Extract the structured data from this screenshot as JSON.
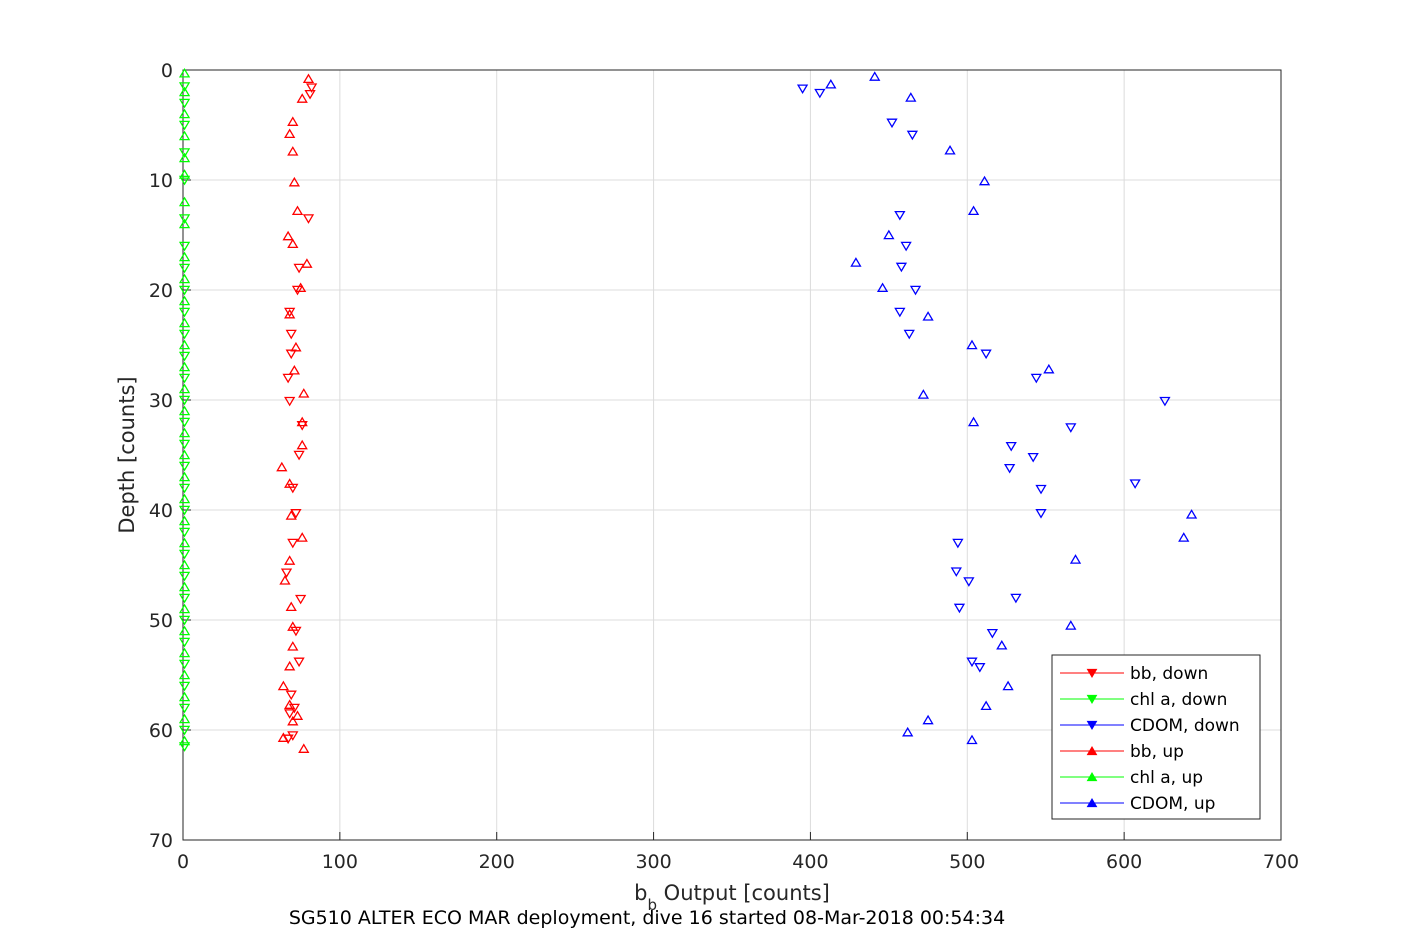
{
  "chart_data": {
    "type": "scatter",
    "title": "",
    "caption": "SG510 ALTER ECO MAR deployment, dive 16 started 08-Mar-2018 00:54:34",
    "xlabel": {
      "main": "b",
      "sub": "b",
      "rest": " Output [counts]"
    },
    "ylabel": "Depth [counts]",
    "xlim": [
      0,
      700
    ],
    "ylim": [
      0,
      70
    ],
    "y_reversed": true,
    "grid": true,
    "xticks": [
      0,
      100,
      200,
      300,
      400,
      500,
      600,
      700
    ],
    "yticks": [
      0,
      10,
      20,
      30,
      40,
      50,
      60,
      70
    ],
    "legend_position": "bottom-right",
    "series": [
      {
        "name": "bb, down",
        "color": "#ff0000",
        "marker": "triangle-down",
        "points": [
          [
            81,
            2.2
          ],
          [
            82,
            1.6
          ],
          [
            80,
            13.5
          ],
          [
            74,
            18
          ],
          [
            73,
            20
          ],
          [
            68,
            22
          ],
          [
            69,
            24
          ],
          [
            69,
            25.8
          ],
          [
            67,
            28
          ],
          [
            68,
            30.1
          ],
          [
            76,
            32.3
          ],
          [
            74,
            35
          ],
          [
            70,
            38
          ],
          [
            72,
            40.3
          ],
          [
            70,
            43
          ],
          [
            66,
            45.7
          ],
          [
            75,
            48.1
          ],
          [
            72,
            51
          ],
          [
            74,
            53.8
          ],
          [
            69,
            56.8
          ],
          [
            71,
            58
          ],
          [
            68,
            58.5
          ],
          [
            67,
            60.8
          ],
          [
            70,
            60.5
          ]
        ]
      },
      {
        "name": "chl a, down",
        "color": "#00ff00",
        "marker": "triangle-down",
        "points": [
          [
            1,
            1.5
          ],
          [
            1,
            3
          ],
          [
            1,
            5
          ],
          [
            1,
            7.5
          ],
          [
            1,
            10
          ],
          [
            1,
            13.5
          ],
          [
            1,
            16
          ],
          [
            1,
            18
          ],
          [
            1,
            20
          ],
          [
            1,
            22
          ],
          [
            1,
            24
          ],
          [
            1,
            26
          ],
          [
            1,
            28
          ],
          [
            1,
            30
          ],
          [
            1,
            32
          ],
          [
            1,
            34
          ],
          [
            1,
            36
          ],
          [
            1,
            38
          ],
          [
            1,
            40
          ],
          [
            1,
            42
          ],
          [
            1,
            44
          ],
          [
            1,
            46
          ],
          [
            1,
            48
          ],
          [
            1,
            50
          ],
          [
            1,
            52
          ],
          [
            1,
            54
          ],
          [
            1,
            56
          ],
          [
            1,
            58
          ],
          [
            1,
            60
          ],
          [
            1,
            61.5
          ]
        ]
      },
      {
        "name": "CDOM, down",
        "color": "#0000ff",
        "marker": "triangle-down",
        "points": [
          [
            395,
            1.7
          ],
          [
            406,
            2.1
          ],
          [
            452,
            4.8
          ],
          [
            465,
            5.9
          ],
          [
            457,
            13.2
          ],
          [
            461,
            16
          ],
          [
            458,
            17.9
          ],
          [
            467,
            20
          ],
          [
            457,
            22
          ],
          [
            463,
            24
          ],
          [
            512,
            25.8
          ],
          [
            544,
            28
          ],
          [
            626,
            30.1
          ],
          [
            566,
            32.5
          ],
          [
            528,
            34.2
          ],
          [
            542,
            35.2
          ],
          [
            527,
            36.2
          ],
          [
            607,
            37.6
          ],
          [
            547,
            38.1
          ],
          [
            547,
            40.3
          ],
          [
            494,
            43
          ],
          [
            493,
            45.6
          ],
          [
            501,
            46.5
          ],
          [
            531,
            48
          ],
          [
            495,
            48.9
          ],
          [
            516,
            51.2
          ],
          [
            503,
            53.8
          ],
          [
            508,
            54.3
          ]
        ]
      },
      {
        "name": "bb, up",
        "color": "#ff0000",
        "marker": "triangle-up",
        "points": [
          [
            80,
            0.8
          ],
          [
            76,
            2.6
          ],
          [
            70,
            4.7
          ],
          [
            68,
            5.8
          ],
          [
            70,
            7.4
          ],
          [
            71,
            10.2
          ],
          [
            73,
            12.8
          ],
          [
            67,
            15.1
          ],
          [
            70,
            15.8
          ],
          [
            79,
            17.6
          ],
          [
            75,
            19.8
          ],
          [
            68,
            22.2
          ],
          [
            72,
            25.2
          ],
          [
            71,
            27.3
          ],
          [
            77,
            29.4
          ],
          [
            76,
            32
          ],
          [
            76,
            34.1
          ],
          [
            63,
            36.1
          ],
          [
            68,
            37.6
          ],
          [
            69,
            40.5
          ],
          [
            76,
            42.5
          ],
          [
            68,
            44.6
          ],
          [
            65,
            46.4
          ],
          [
            69,
            48.8
          ],
          [
            70,
            50.6
          ],
          [
            70,
            52.4
          ],
          [
            68,
            54.2
          ],
          [
            64,
            56
          ],
          [
            68,
            57.7
          ],
          [
            73,
            58.7
          ],
          [
            70,
            59.2
          ],
          [
            64,
            60.7
          ],
          [
            77,
            61.7
          ]
        ]
      },
      {
        "name": "chl a, up",
        "color": "#00ff00",
        "marker": "triangle-up",
        "points": [
          [
            1,
            0.3
          ],
          [
            1,
            2
          ],
          [
            1,
            4
          ],
          [
            1,
            6
          ],
          [
            1,
            8
          ],
          [
            1,
            9.5
          ],
          [
            1,
            12
          ],
          [
            1,
            14
          ],
          [
            1,
            17
          ],
          [
            1,
            19
          ],
          [
            1,
            21
          ],
          [
            1,
            23
          ],
          [
            1,
            25
          ],
          [
            1,
            27
          ],
          [
            1,
            29
          ],
          [
            1,
            31
          ],
          [
            1,
            33
          ],
          [
            1,
            35
          ],
          [
            1,
            37
          ],
          [
            1,
            39
          ],
          [
            1,
            41
          ],
          [
            1,
            43
          ],
          [
            1,
            45
          ],
          [
            1,
            47
          ],
          [
            1,
            49
          ],
          [
            1,
            51
          ],
          [
            1,
            53
          ],
          [
            1,
            55
          ],
          [
            1,
            57
          ],
          [
            1,
            59
          ],
          [
            1,
            61
          ]
        ]
      },
      {
        "name": "CDOM, up",
        "color": "#0000ff",
        "marker": "triangle-up",
        "points": [
          [
            441,
            0.6
          ],
          [
            413,
            1.3
          ],
          [
            464,
            2.5
          ],
          [
            489,
            7.3
          ],
          [
            511,
            10.1
          ],
          [
            504,
            12.8
          ],
          [
            450,
            15
          ],
          [
            429,
            17.5
          ],
          [
            446,
            19.8
          ],
          [
            475,
            22.4
          ],
          [
            503,
            25
          ],
          [
            552,
            27.2
          ],
          [
            472,
            29.5
          ],
          [
            504,
            32
          ],
          [
            643,
            40.4
          ],
          [
            638,
            42.5
          ],
          [
            569,
            44.5
          ],
          [
            566,
            50.5
          ],
          [
            522,
            52.3
          ],
          [
            526,
            56
          ],
          [
            512,
            57.8
          ],
          [
            475,
            59.1
          ],
          [
            462,
            60.2
          ],
          [
            503,
            60.9
          ]
        ]
      }
    ]
  }
}
